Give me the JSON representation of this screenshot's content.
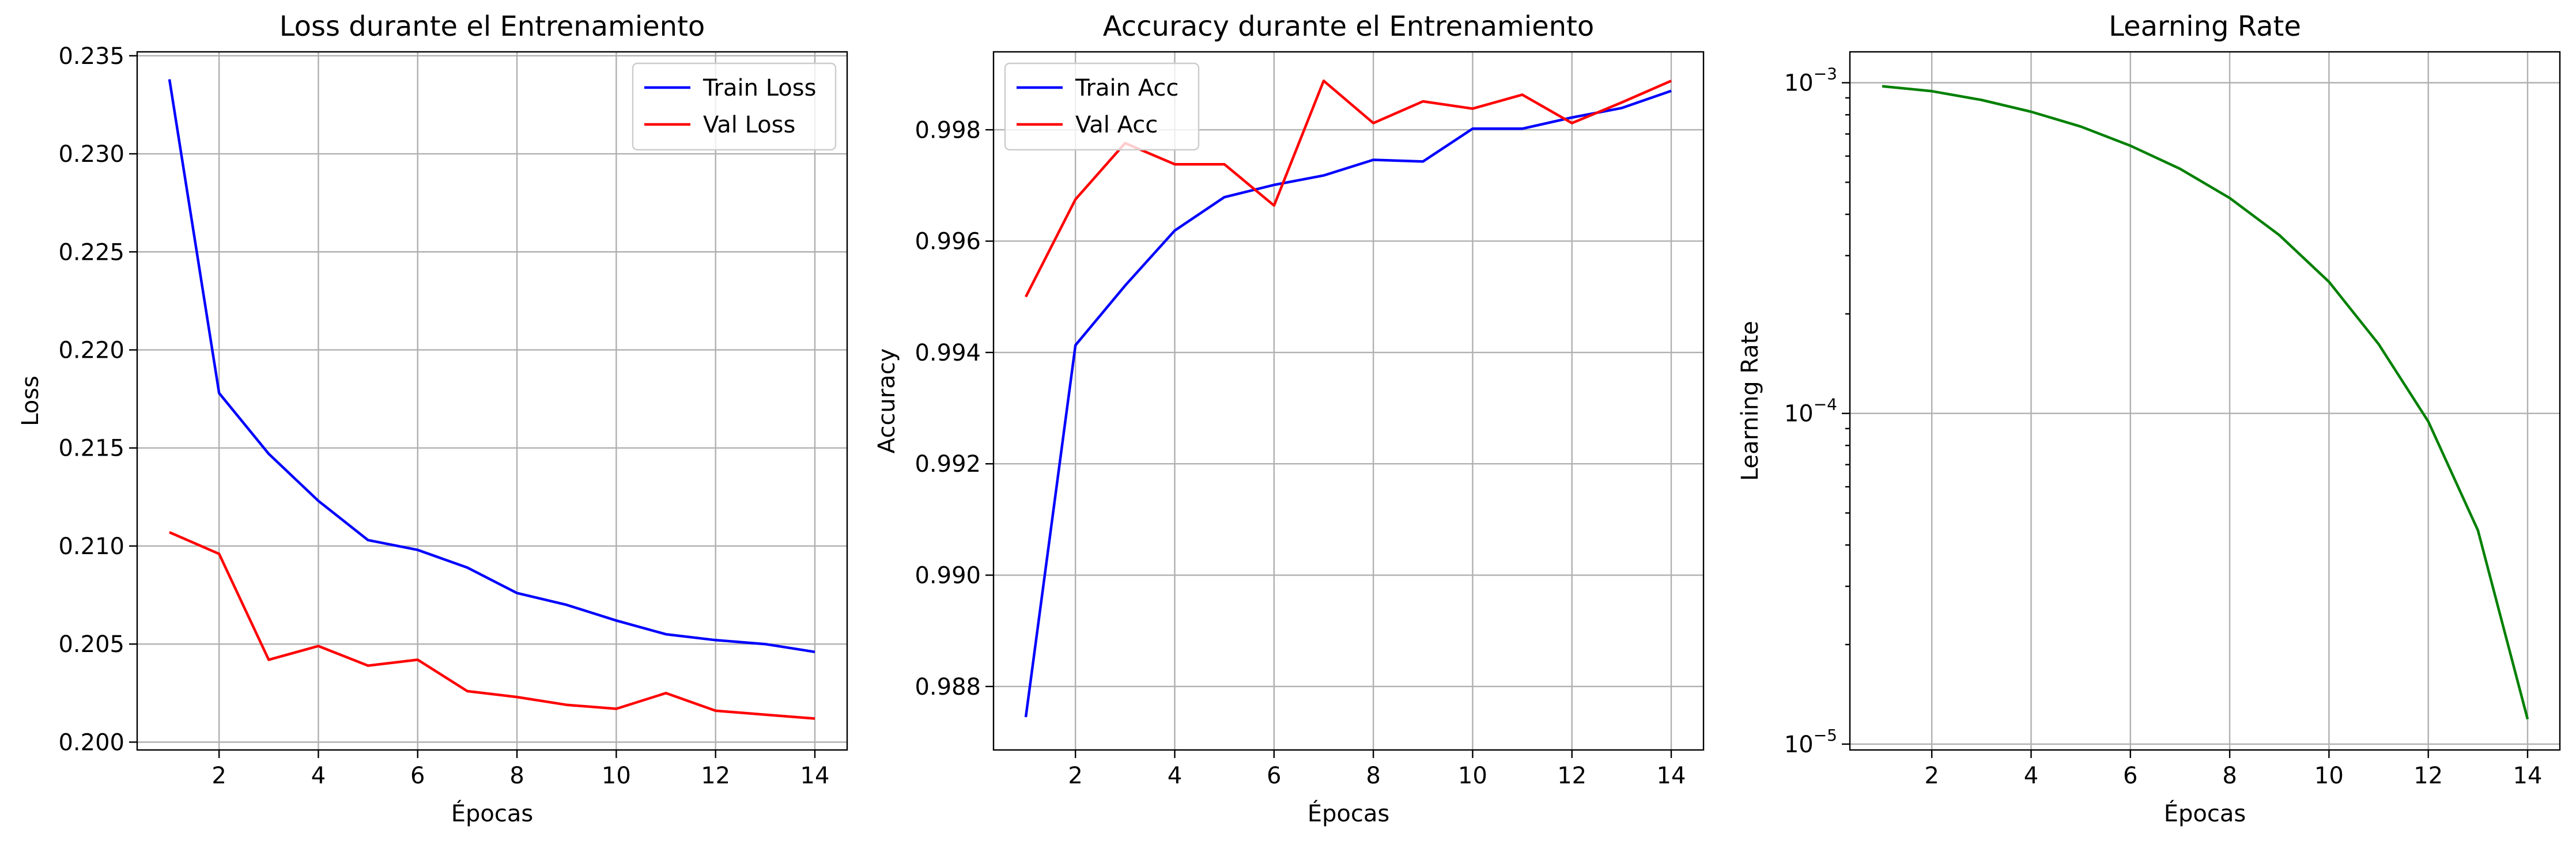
{
  "chart_data": [
    {
      "type": "line",
      "title": "Loss durante el Entrenamiento",
      "xlabel": "Épocas",
      "ylabel": "Loss",
      "xlim": [
        0.35,
        14.65
      ],
      "ylim": [
        0.1996,
        0.2352
      ],
      "xticks": [
        2,
        4,
        6,
        8,
        10,
        12,
        14
      ],
      "yticks": [
        0.2,
        0.205,
        0.21,
        0.215,
        0.22,
        0.225,
        0.23,
        0.235
      ],
      "ytick_labels": [
        "0.200",
        "0.205",
        "0.210",
        "0.215",
        "0.220",
        "0.225",
        "0.230",
        "0.235"
      ],
      "yscale": "linear",
      "grid": true,
      "legend": "top-right",
      "x": [
        1,
        2,
        3,
        4,
        5,
        6,
        7,
        8,
        9,
        10,
        11,
        12,
        13,
        14
      ],
      "series": [
        {
          "name": "Train Loss",
          "color": "#0000ff",
          "values": [
            0.2338,
            0.2178,
            0.2147,
            0.2123,
            0.2103,
            0.2098,
            0.2089,
            0.2076,
            0.207,
            0.2062,
            0.2055,
            0.2052,
            0.205,
            0.2046
          ]
        },
        {
          "name": "Val Loss",
          "color": "#ff0000",
          "values": [
            0.2107,
            0.2096,
            0.2042,
            0.2049,
            0.2039,
            0.2042,
            0.2026,
            0.2023,
            0.2019,
            0.2017,
            0.2025,
            0.2016,
            0.2014,
            0.2012
          ]
        }
      ]
    },
    {
      "type": "line",
      "title": "Accuracy durante el Entrenamiento",
      "xlabel": "Épocas",
      "ylabel": "Accuracy",
      "xlim": [
        0.35,
        14.65
      ],
      "ylim": [
        0.98686,
        0.9994
      ],
      "xticks": [
        2,
        4,
        6,
        8,
        10,
        12,
        14
      ],
      "yticks": [
        0.988,
        0.99,
        0.992,
        0.994,
        0.996,
        0.998
      ],
      "ytick_labels": [
        "0.988",
        "0.990",
        "0.992",
        "0.994",
        "0.996",
        "0.998"
      ],
      "yscale": "linear",
      "grid": true,
      "legend": "top-left",
      "x": [
        1,
        2,
        3,
        4,
        5,
        6,
        7,
        8,
        9,
        10,
        11,
        12,
        13,
        14
      ],
      "series": [
        {
          "name": "Train Acc",
          "color": "#0000ff",
          "values": [
            0.98745,
            0.99413,
            0.9952,
            0.99619,
            0.99679,
            0.99701,
            0.99718,
            0.99746,
            0.99743,
            0.99802,
            0.99802,
            0.99822,
            0.99839,
            0.9987
          ]
        },
        {
          "name": "Val Acc",
          "color": "#ff0000",
          "values": [
            0.995,
            0.99675,
            0.99776,
            0.99738,
            0.99738,
            0.99664,
            0.99888,
            0.99812,
            0.99851,
            0.99838,
            0.99863,
            0.99812,
            0.99849,
            0.99888
          ]
        }
      ]
    },
    {
      "type": "line",
      "title": "Learning Rate",
      "xlabel": "Épocas",
      "ylabel": "Learning Rate",
      "xlim": [
        0.35,
        14.65
      ],
      "ylim": [
        9.6e-06,
        0.00124
      ],
      "xticks": [
        2,
        4,
        6,
        8,
        10,
        12,
        14
      ],
      "yticks": [
        1e-05,
        0.0001,
        0.001
      ],
      "ytick_labels": [
        "10",
        "10",
        "10"
      ],
      "ytick_exponents": [
        "−5",
        "−4",
        "−3"
      ],
      "yscale": "log",
      "grid": true,
      "x": [
        1,
        2,
        3,
        4,
        5,
        6,
        7,
        8,
        9,
        10,
        11,
        12,
        13,
        14
      ],
      "series": [
        {
          "name": "",
          "color": "#008000",
          "values": [
            0.000976,
            0.000943,
            0.000887,
            0.000817,
            0.000737,
            0.000645,
            0.000549,
            0.000448,
            0.000346,
            0.00025,
            0.000162,
            9.45e-05,
            4.43e-05,
            1.19e-05
          ]
        }
      ]
    }
  ]
}
